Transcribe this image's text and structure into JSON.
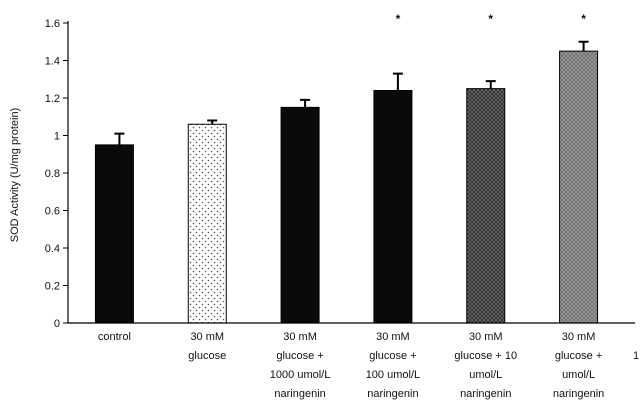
{
  "chart_data": {
    "type": "bar",
    "title": "",
    "xlabel": "",
    "ylabel": "SOD Activity (U/mg protein)",
    "ylim": [
      0,
      1.6
    ],
    "yticks": [
      "0",
      "0.2",
      "0.4",
      "0.6",
      "0.8",
      "1",
      "1.2",
      "1.4",
      "1.6"
    ],
    "grid": false,
    "categories": [
      [
        "control"
      ],
      [
        "30 mM",
        "glucose"
      ],
      [
        "30 mM",
        "glucose +",
        "1000 umol/L",
        "naringenin"
      ],
      [
        "30 mM",
        "glucose +",
        "100 umol/L",
        "naringenin"
      ],
      [
        "30 mM",
        "glucose + 10",
        "umol/L",
        "naringenin"
      ],
      [
        "30 mM",
        "glucose +",
        "umol/L",
        "naringenin"
      ]
    ],
    "values": [
      0.95,
      1.06,
      1.15,
      1.24,
      1.25,
      1.45
    ],
    "errors": [
      0.06,
      0.02,
      0.04,
      0.09,
      0.04,
      0.05
    ],
    "significance": [
      "",
      "",
      "",
      "*",
      "*",
      "*"
    ],
    "bar_styles": [
      "black",
      "dotted-white",
      "black",
      "black",
      "crosshatch-dark",
      "crosshatch-gray"
    ],
    "cropped_label_fragment": "1"
  }
}
